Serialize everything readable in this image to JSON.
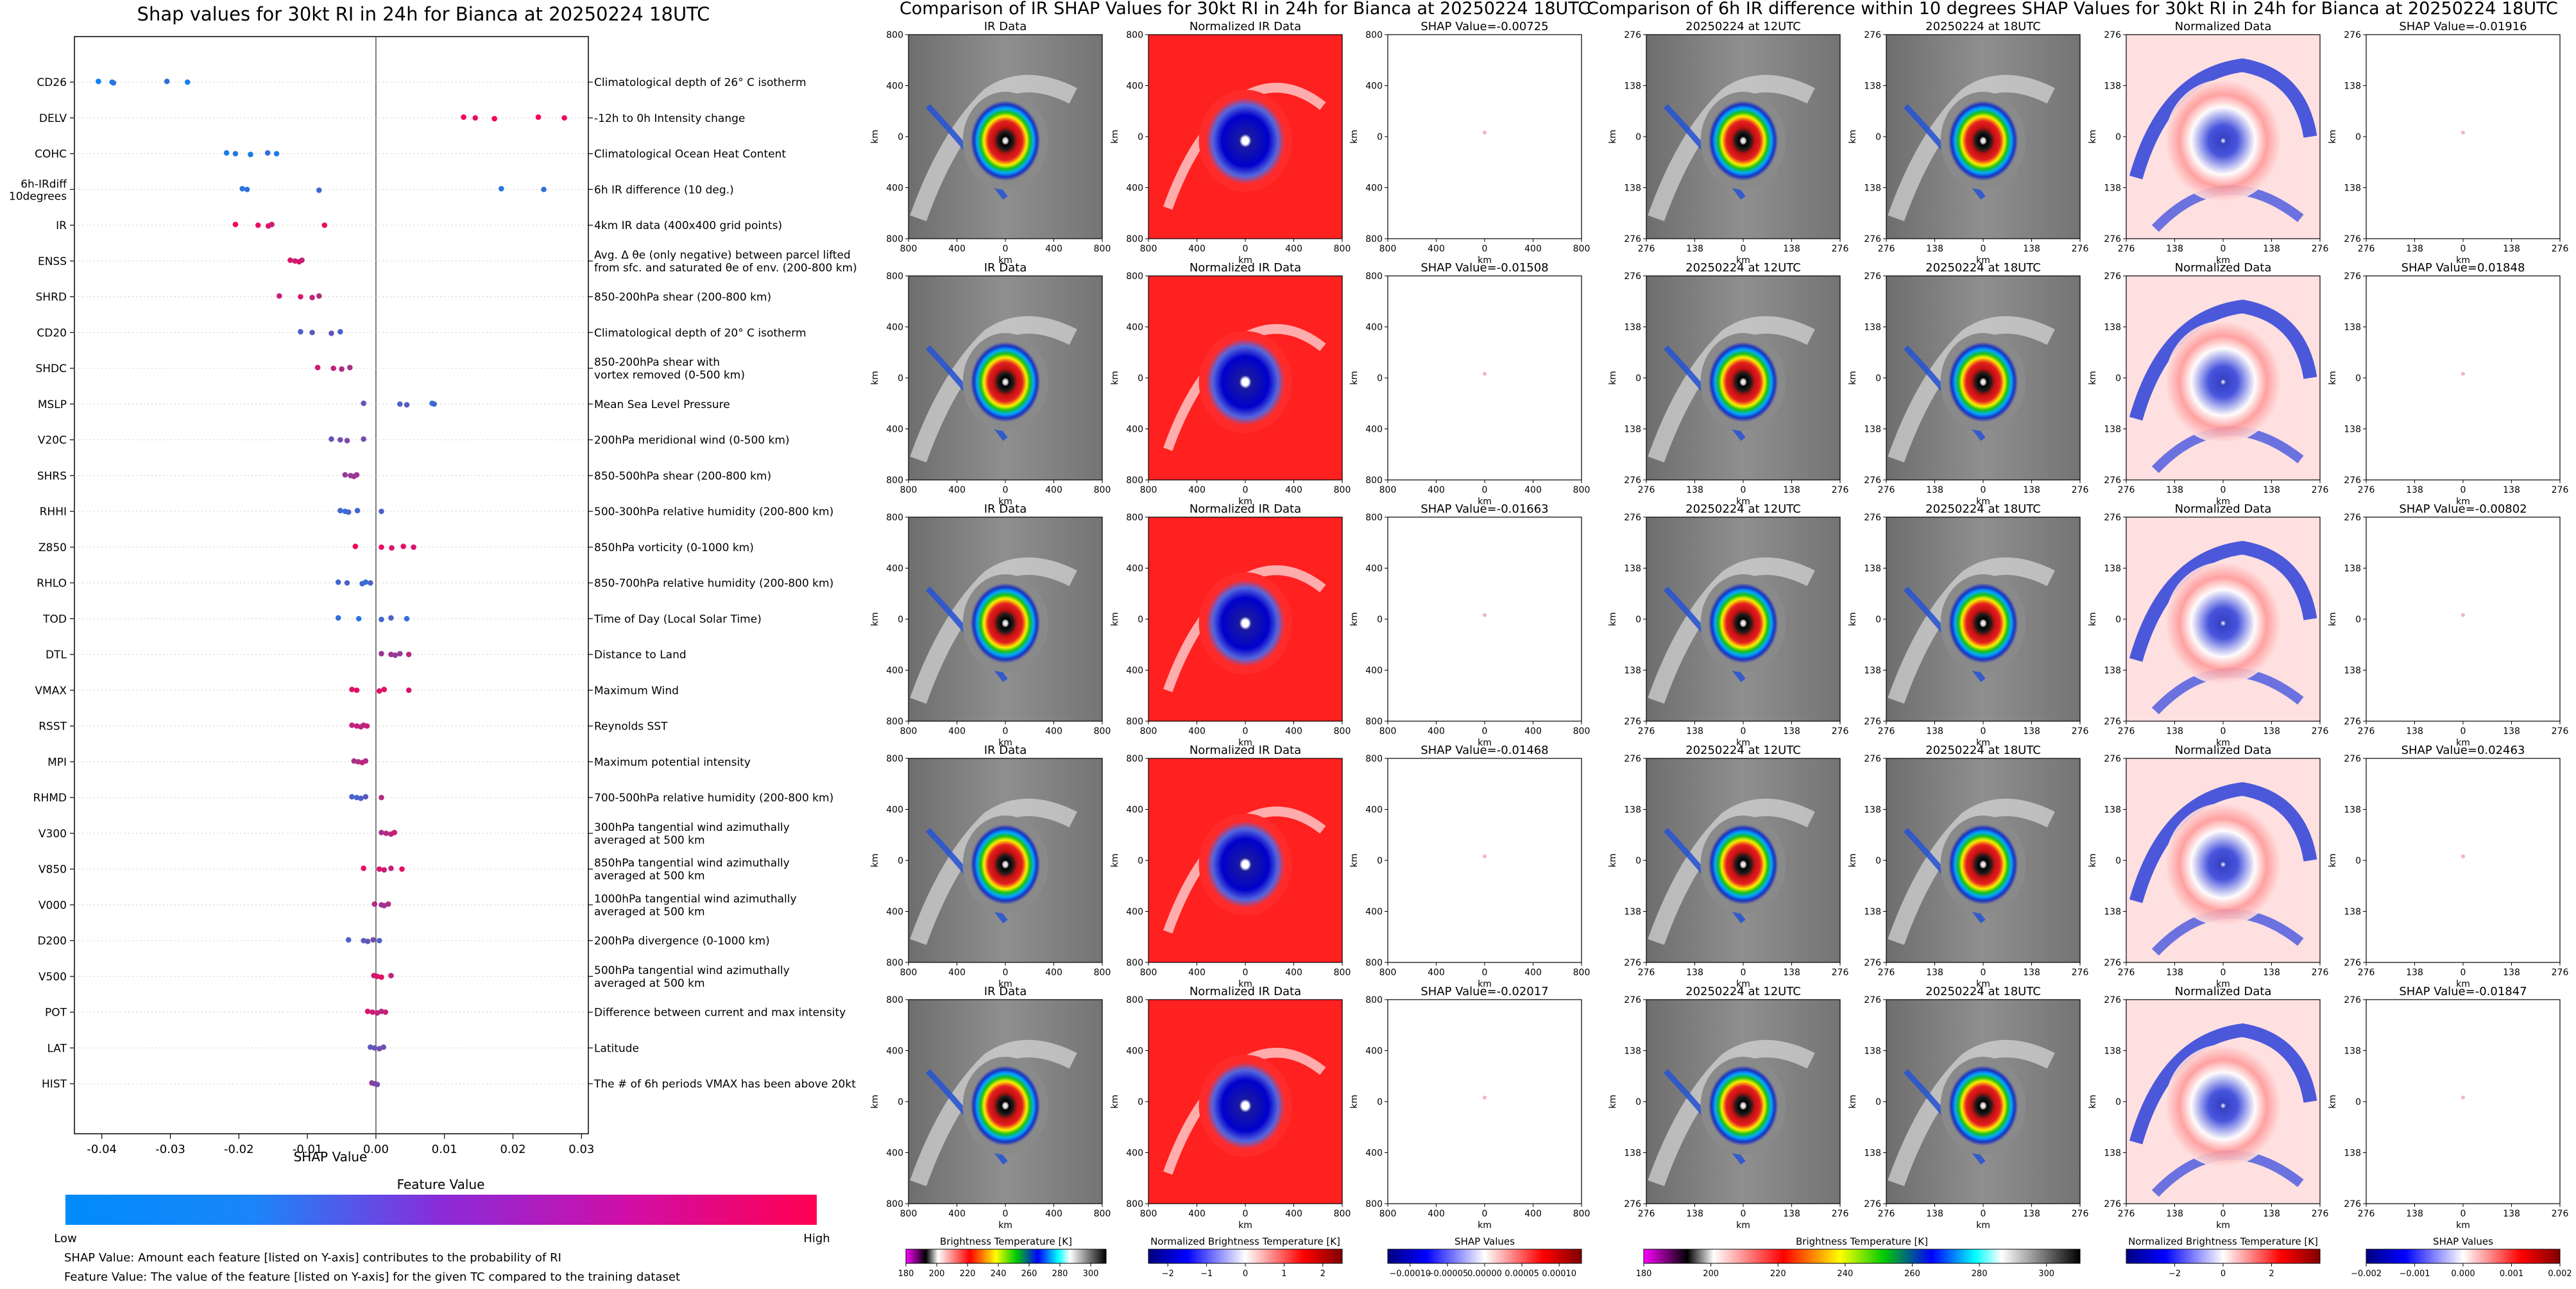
{
  "chart_data": [
    {
      "type": "scatter",
      "title": "Shap values for 30kt RI in 24h for Bianca at 20250224 18UTC",
      "xlabel": "SHAP Value",
      "xlim": [
        -0.044,
        0.031
      ],
      "xticks": [
        "-0.04",
        "-0.03",
        "-0.02",
        "-0.01",
        "0.00",
        "0.01",
        "0.02",
        "0.03"
      ],
      "colorbar": {
        "title": "Feature Value",
        "low": "Low",
        "high": "High",
        "colors": [
          "#008bfb",
          "#ff0052"
        ]
      },
      "notes": [
        "SHAP Value: Amount each feature [listed on Y-axis] contributes to the probability of RI",
        "Feature Value: The value of the feature [listed on Y-axis] for the given TC compared to the training dataset"
      ],
      "features": [
        {
          "name": "CD26",
          "desc": [
            "Climatological depth of 26° C isotherm"
          ],
          "points": [
            [
              -0.0405,
              0.05
            ],
            [
              -0.0385,
              0.1
            ],
            [
              -0.0383,
              0.15
            ],
            [
              -0.0305,
              0.2
            ],
            [
              -0.0275,
              0.1
            ]
          ]
        },
        {
          "name": "DELV",
          "desc": [
            "-12h to 0h Intensity change"
          ],
          "points": [
            [
              0.0128,
              0.95
            ],
            [
              0.0145,
              0.9
            ],
            [
              0.0173,
              0.95
            ],
            [
              0.0237,
              1.0
            ],
            [
              0.0275,
              0.9
            ]
          ]
        },
        {
          "name": "COHC",
          "desc": [
            "Climatological Ocean Heat Content"
          ],
          "points": [
            [
              -0.0218,
              0.1
            ],
            [
              -0.0205,
              0.15
            ],
            [
              -0.0183,
              0.1
            ],
            [
              -0.0158,
              0.2
            ],
            [
              -0.0145,
              0.1
            ]
          ]
        },
        {
          "name": "6h-IRdiff 10degrees",
          "desc": [
            "6h IR difference (10 deg.)"
          ],
          "points": [
            [
              -0.0195,
              0.15
            ],
            [
              -0.0188,
              0.2
            ],
            [
              -0.0083,
              0.25
            ],
            [
              0.0183,
              0.15
            ],
            [
              0.0245,
              0.2
            ]
          ]
        },
        {
          "name": "IR",
          "desc": [
            "4km IR data (400x400 grid points)"
          ],
          "points": [
            [
              -0.0205,
              0.95
            ],
            [
              -0.0172,
              0.9
            ],
            [
              -0.0157,
              0.85
            ],
            [
              -0.0152,
              0.8
            ],
            [
              -0.0075,
              0.9
            ]
          ]
        },
        {
          "name": "ENSS",
          "desc": [
            "Avg. Δ θe (only negative) between parcel lifted",
            "from sfc. and saturated θe of env. (200-800 km)"
          ],
          "points": [
            [
              -0.0125,
              0.85
            ],
            [
              -0.0118,
              0.8
            ],
            [
              -0.0112,
              0.9
            ],
            [
              -0.0108,
              0.75
            ]
          ]
        },
        {
          "name": "SHRD",
          "desc": [
            "850-200hPa shear (200-800 km)"
          ],
          "points": [
            [
              -0.0141,
              0.8
            ],
            [
              -0.011,
              0.85
            ],
            [
              -0.0093,
              0.75
            ],
            [
              -0.0083,
              0.7
            ]
          ]
        },
        {
          "name": "CD20",
          "desc": [
            "Climatological depth of 20° C isotherm"
          ],
          "points": [
            [
              -0.011,
              0.3
            ],
            [
              -0.0093,
              0.35
            ],
            [
              -0.0065,
              0.4
            ],
            [
              -0.0052,
              0.3
            ]
          ]
        },
        {
          "name": "SHDC",
          "desc": [
            "850-200hPa shear with",
            "vortex removed (0-500 km)"
          ],
          "points": [
            [
              -0.0085,
              0.8
            ],
            [
              -0.0062,
              0.75
            ],
            [
              -0.005,
              0.7
            ],
            [
              -0.0038,
              0.65
            ]
          ]
        },
        {
          "name": "MSLP",
          "desc": [
            "Mean Sea Level Pressure"
          ],
          "points": [
            [
              -0.0018,
              0.4
            ],
            [
              0.0035,
              0.3
            ],
            [
              0.0045,
              0.35
            ],
            [
              0.0082,
              0.2
            ],
            [
              0.0085,
              0.25
            ]
          ]
        },
        {
          "name": "V20C",
          "desc": [
            "200hPa meridional wind (0-500 km)"
          ],
          "points": [
            [
              -0.0065,
              0.4
            ],
            [
              -0.0052,
              0.45
            ],
            [
              -0.0042,
              0.5
            ],
            [
              -0.0018,
              0.45
            ]
          ]
        },
        {
          "name": "SHRS",
          "desc": [
            "850-500hPa shear (200-800 km)"
          ],
          "points": [
            [
              -0.0045,
              0.6
            ],
            [
              -0.0037,
              0.55
            ],
            [
              -0.0032,
              0.65
            ],
            [
              -0.0028,
              0.6
            ]
          ]
        },
        {
          "name": "RHHI",
          "desc": [
            "500-300hPa relative humidity (200-800 km)"
          ],
          "points": [
            [
              -0.0052,
              0.25
            ],
            [
              -0.0045,
              0.2
            ],
            [
              -0.004,
              0.3
            ],
            [
              -0.0027,
              0.25
            ],
            [
              0.0008,
              0.3
            ]
          ]
        },
        {
          "name": "Z850",
          "desc": [
            "850hPa vorticity (0-1000 km)"
          ],
          "points": [
            [
              -0.003,
              0.95
            ],
            [
              0.0008,
              0.9
            ],
            [
              0.0023,
              0.85
            ],
            [
              0.004,
              0.9
            ],
            [
              0.0055,
              0.85
            ]
          ]
        },
        {
          "name": "RHLO",
          "desc": [
            "850-700hPa relative humidity (200-800 km)"
          ],
          "points": [
            [
              -0.0055,
              0.25
            ],
            [
              -0.0042,
              0.3
            ],
            [
              -0.002,
              0.25
            ],
            [
              -0.0015,
              0.2
            ],
            [
              -0.0008,
              0.3
            ]
          ]
        },
        {
          "name": "TOD",
          "desc": [
            "Time of Day (Local Solar Time)"
          ],
          "points": [
            [
              -0.0055,
              0.2
            ],
            [
              -0.0025,
              0.15
            ],
            [
              0.0008,
              0.25
            ],
            [
              0.0022,
              0.3
            ],
            [
              0.0045,
              0.2
            ]
          ]
        },
        {
          "name": "DTL",
          "desc": [
            "Distance to Land"
          ],
          "points": [
            [
              0.0008,
              0.6
            ],
            [
              0.0022,
              0.65
            ],
            [
              0.0028,
              0.55
            ],
            [
              0.0035,
              0.6
            ],
            [
              0.0048,
              0.7
            ]
          ]
        },
        {
          "name": "VMAX",
          "desc": [
            "Maximum Wind"
          ],
          "points": [
            [
              -0.0035,
              0.85
            ],
            [
              -0.0028,
              0.9
            ],
            [
              0.0005,
              0.85
            ],
            [
              0.0012,
              0.9
            ],
            [
              0.0048,
              0.85
            ]
          ]
        },
        {
          "name": "RSST",
          "desc": [
            "Reynolds SST"
          ],
          "points": [
            [
              -0.0035,
              0.75
            ],
            [
              -0.0028,
              0.8
            ],
            [
              -0.0022,
              0.7
            ],
            [
              -0.0018,
              0.75
            ],
            [
              -0.0013,
              0.8
            ]
          ]
        },
        {
          "name": "MPI",
          "desc": [
            "Maximum potential intensity"
          ],
          "points": [
            [
              -0.0032,
              0.65
            ],
            [
              -0.0026,
              0.7
            ],
            [
              -0.002,
              0.75
            ],
            [
              -0.0015,
              0.7
            ]
          ]
        },
        {
          "name": "RHMD",
          "desc": [
            "700-500hPa relative humidity (200-800 km)"
          ],
          "points": [
            [
              -0.0035,
              0.3
            ],
            [
              -0.0028,
              0.25
            ],
            [
              -0.0022,
              0.3
            ],
            [
              -0.0015,
              0.35
            ],
            [
              0.0008,
              0.7
            ]
          ]
        },
        {
          "name": "V300",
          "desc": [
            "300hPa tangential wind azimuthally",
            "averaged at 500 km"
          ],
          "points": [
            [
              0.0008,
              0.65
            ],
            [
              0.0015,
              0.7
            ],
            [
              0.0022,
              0.75
            ],
            [
              0.0027,
              0.8
            ]
          ]
        },
        {
          "name": "V850",
          "desc": [
            "850hPa tangential wind azimuthally",
            "averaged at 500 km"
          ],
          "points": [
            [
              -0.0018,
              0.9
            ],
            [
              0.0005,
              0.85
            ],
            [
              0.0012,
              0.8
            ],
            [
              0.0022,
              0.75
            ],
            [
              0.0038,
              0.9
            ]
          ]
        },
        {
          "name": "V000",
          "desc": [
            "1000hPa tangential wind azimuthally",
            "averaged at 500 km"
          ],
          "points": [
            [
              -0.0002,
              0.7
            ],
            [
              0.0008,
              0.65
            ],
            [
              0.0012,
              0.6
            ],
            [
              0.0018,
              0.7
            ]
          ]
        },
        {
          "name": "D200",
          "desc": [
            "200hPa divergence (0-1000 km)"
          ],
          "points": [
            [
              -0.004,
              0.3
            ],
            [
              -0.0018,
              0.35
            ],
            [
              -0.0012,
              0.4
            ],
            [
              -0.0004,
              0.45
            ],
            [
              0.0005,
              0.3
            ]
          ]
        },
        {
          "name": "V500",
          "desc": [
            "500hPa tangential wind azimuthally",
            "averaged at 500 km"
          ],
          "points": [
            [
              -0.0003,
              0.8
            ],
            [
              0.0002,
              0.85
            ],
            [
              0.0008,
              0.9
            ],
            [
              0.0022,
              0.75
            ]
          ]
        },
        {
          "name": "POT",
          "desc": [
            "Difference between current and max intensity"
          ],
          "points": [
            [
              -0.0012,
              0.85
            ],
            [
              -0.0005,
              0.8
            ],
            [
              0.0002,
              0.75
            ],
            [
              0.0008,
              0.7
            ],
            [
              0.0014,
              0.8
            ]
          ]
        },
        {
          "name": "LAT",
          "desc": [
            "Latitude"
          ],
          "points": [
            [
              -0.0008,
              0.35
            ],
            [
              -0.0002,
              0.4
            ],
            [
              0.0005,
              0.45
            ],
            [
              0.0011,
              0.4
            ]
          ]
        },
        {
          "name": "HIST",
          "desc": [
            "The # of 6h periods VMAX has been above 20kt"
          ],
          "points": [
            [
              -0.0006,
              0.55
            ],
            [
              -0.0002,
              0.5
            ],
            [
              0.0002,
              0.45
            ]
          ]
        }
      ]
    },
    {
      "type": "heatmap",
      "title": "Comparison of IR SHAP Values for 30kt RI in 24h for Bianca at 20250224 18UTC",
      "columns": [
        {
          "titles": [
            "IR Data",
            "IR Data",
            "IR Data",
            "IR Data",
            "IR Data"
          ],
          "kind": "ir"
        },
        {
          "titles": [
            "Normalized IR Data",
            "Normalized IR Data",
            "Normalized IR Data",
            "Normalized IR Data",
            "Normalized IR Data"
          ],
          "kind": "norm"
        },
        {
          "titles": [
            "SHAP Value=-0.00725",
            "SHAP Value=-0.01508",
            "SHAP Value=-0.01663",
            "SHAP Value=-0.01468",
            "SHAP Value=-0.02017"
          ],
          "kind": "shap"
        }
      ],
      "xlabel": "km",
      "ylabel": "km",
      "xticks": [
        "800",
        "400",
        "0",
        "400",
        "800"
      ],
      "yticks": [
        "800",
        "400",
        "0",
        "400",
        "800"
      ],
      "colorbars": [
        {
          "label": "Brightness Temperature [K]",
          "ticks": [
            "180",
            "200",
            "220",
            "240",
            "260",
            "280",
            "300"
          ],
          "range": [
            180,
            310
          ]
        },
        {
          "label": "Normalized Brightness Temperature [K]",
          "ticks": [
            "−2",
            "−1",
            "0",
            "1",
            "2"
          ],
          "range": [
            -2.5,
            2.5
          ]
        },
        {
          "label": "SHAP Values",
          "ticks": [
            "−0.00010",
            "−0.00005",
            "0.00000",
            "0.00005",
            "0.00010"
          ],
          "range": [
            -0.00013,
            0.00013
          ]
        }
      ]
    },
    {
      "type": "heatmap",
      "title": "Comparison of 6h IR difference within 10 degrees SHAP Values for 30kt RI in 24h for Bianca at 20250224 18UTC",
      "columns": [
        {
          "titles": [
            "20250224 at 12UTC",
            "20250224 at 12UTC",
            "20250224 at 12UTC",
            "20250224 at 12UTC",
            "20250224 at 12UTC"
          ],
          "kind": "ir"
        },
        {
          "titles": [
            "20250224 at 18UTC",
            "20250224 at 18UTC",
            "20250224 at 18UTC",
            "20250224 at 18UTC",
            "20250224 at 18UTC"
          ],
          "kind": "ir"
        },
        {
          "titles": [
            "Normalized Data",
            "Normalized Data",
            "Normalized Data",
            "Normalized Data",
            "Normalized Data"
          ],
          "kind": "diff"
        },
        {
          "titles": [
            "SHAP Value=-0.01916",
            "SHAP Value=0.01848",
            "SHAP Value=-0.00802",
            "SHAP Value=0.02463",
            "SHAP Value=-0.01847"
          ],
          "kind": "shap2"
        }
      ],
      "xlabel": "km",
      "ylabel": "km",
      "xticks": [
        "276",
        "138",
        "0",
        "138",
        "276"
      ],
      "yticks": [
        "276",
        "138",
        "0",
        "138",
        "276"
      ],
      "colorbars": [
        {
          "label": "Brightness Temperature [K]",
          "ticks": [
            "180",
            "200",
            "220",
            "240",
            "260",
            "280",
            "300"
          ],
          "range": [
            180,
            310
          ]
        },
        {
          "label": "Normalized Brightness Temperature [K]",
          "ticks": [
            "−2",
            "0",
            "2"
          ],
          "range": [
            -4,
            4
          ]
        },
        {
          "label": "SHAP Values",
          "ticks": [
            "−0.002",
            "−0.001",
            "0.000",
            "0.001",
            "0.002"
          ],
          "range": [
            -0.002,
            0.002
          ]
        }
      ]
    }
  ]
}
